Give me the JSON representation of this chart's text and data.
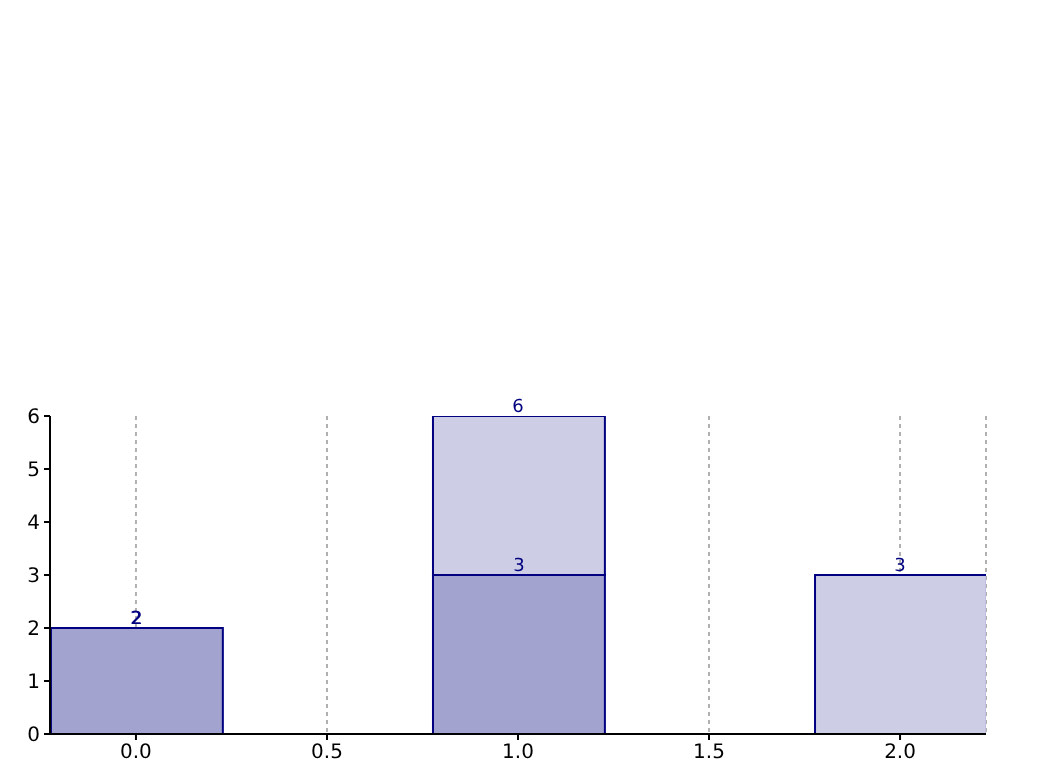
{
  "chart_data": {
    "type": "bar",
    "stacked": true,
    "x": [
      0,
      1,
      2
    ],
    "series": [
      {
        "color": "#a3a3d0",
        "values": [
          2,
          3,
          0
        ],
        "value_labels": [
          "2",
          "3",
          null
        ]
      },
      {
        "color": "#cdcde5",
        "values": [
          0,
          3,
          3
        ]
      }
    ],
    "totals": [
      "2",
      "6",
      "3"
    ],
    "xlim": [
      -0.225,
      2.225
    ],
    "xticks": [
      {
        "value": 0,
        "label": "0.0"
      },
      {
        "value": 0.5,
        "label": "0.5"
      },
      {
        "value": 1,
        "label": "1.0"
      },
      {
        "value": 1.5,
        "label": "1.5"
      },
      {
        "value": 2,
        "label": "2.0"
      }
    ],
    "ylim": [
      0,
      6
    ],
    "yticks": [
      0,
      1,
      2,
      3,
      4,
      5,
      6
    ],
    "grid": "x"
  }
}
